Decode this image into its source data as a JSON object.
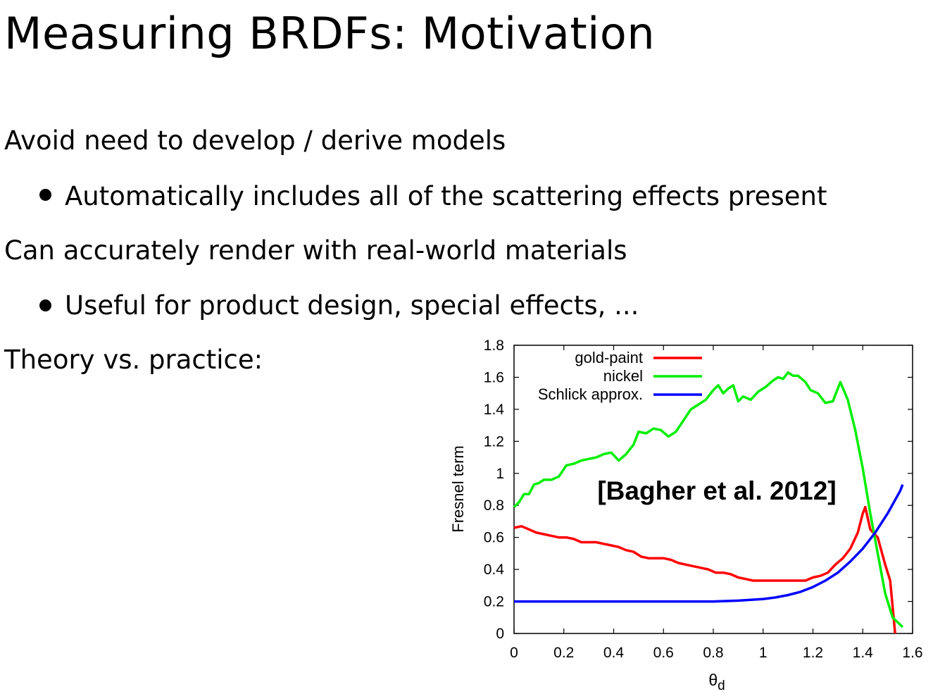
{
  "slide": {
    "title": "Measuring BRDFs: Motivation",
    "lines": [
      "Avoid need to develop / derive models",
      "Automatically includes all of the scattering effects present",
      "Can accurately render with real-world materials",
      "Useful for product design, special effects, ...",
      "Theory vs. practice:"
    ]
  },
  "chart_data": {
    "type": "line",
    "xlabel": "θd",
    "ylabel": "Fresnel term",
    "xlim": [
      0,
      1.6
    ],
    "ylim": [
      0,
      1.8
    ],
    "xticks": [
      "0",
      "0.2",
      "0.4",
      "0.6",
      "0.8",
      "1",
      "1.2",
      "1.4",
      "1.6"
    ],
    "yticks": [
      "0",
      "0.2",
      "0.4",
      "0.6",
      "0.8",
      "1",
      "1.2",
      "1.4",
      "1.6",
      "1.8"
    ],
    "annotation": "[Bagher et al. 2012]",
    "legend_position": "top-left",
    "series": [
      {
        "name": "gold-paint",
        "color": "#ff0000",
        "points": [
          [
            0,
            0.66
          ],
          [
            0.03,
            0.67
          ],
          [
            0.06,
            0.65
          ],
          [
            0.09,
            0.63
          ],
          [
            0.12,
            0.62
          ],
          [
            0.15,
            0.61
          ],
          [
            0.18,
            0.6
          ],
          [
            0.21,
            0.6
          ],
          [
            0.24,
            0.59
          ],
          [
            0.27,
            0.57
          ],
          [
            0.3,
            0.57
          ],
          [
            0.33,
            0.57
          ],
          [
            0.36,
            0.56
          ],
          [
            0.39,
            0.55
          ],
          [
            0.42,
            0.54
          ],
          [
            0.45,
            0.52
          ],
          [
            0.48,
            0.51
          ],
          [
            0.51,
            0.48
          ],
          [
            0.54,
            0.47
          ],
          [
            0.57,
            0.47
          ],
          [
            0.6,
            0.47
          ],
          [
            0.63,
            0.46
          ],
          [
            0.66,
            0.44
          ],
          [
            0.69,
            0.43
          ],
          [
            0.72,
            0.42
          ],
          [
            0.75,
            0.41
          ],
          [
            0.78,
            0.4
          ],
          [
            0.81,
            0.38
          ],
          [
            0.84,
            0.38
          ],
          [
            0.87,
            0.37
          ],
          [
            0.9,
            0.35
          ],
          [
            0.93,
            0.34
          ],
          [
            0.96,
            0.33
          ],
          [
            0.99,
            0.33
          ],
          [
            1.02,
            0.33
          ],
          [
            1.05,
            0.33
          ],
          [
            1.08,
            0.33
          ],
          [
            1.11,
            0.33
          ],
          [
            1.14,
            0.33
          ],
          [
            1.17,
            0.33
          ],
          [
            1.2,
            0.35
          ],
          [
            1.23,
            0.36
          ],
          [
            1.26,
            0.38
          ],
          [
            1.29,
            0.43
          ],
          [
            1.32,
            0.47
          ],
          [
            1.35,
            0.53
          ],
          [
            1.38,
            0.63
          ],
          [
            1.4,
            0.75
          ],
          [
            1.41,
            0.79
          ],
          [
            1.43,
            0.65
          ],
          [
            1.46,
            0.6
          ],
          [
            1.49,
            0.43
          ],
          [
            1.51,
            0.33
          ],
          [
            1.53,
            0.0
          ]
        ]
      },
      {
        "name": "nickel",
        "color": "#00ee00",
        "points": [
          [
            0,
            0.79
          ],
          [
            0.02,
            0.82
          ],
          [
            0.04,
            0.87
          ],
          [
            0.06,
            0.87
          ],
          [
            0.08,
            0.93
          ],
          [
            0.1,
            0.94
          ],
          [
            0.12,
            0.96
          ],
          [
            0.15,
            0.96
          ],
          [
            0.18,
            0.98
          ],
          [
            0.21,
            1.05
          ],
          [
            0.24,
            1.06
          ],
          [
            0.27,
            1.08
          ],
          [
            0.3,
            1.09
          ],
          [
            0.33,
            1.1
          ],
          [
            0.36,
            1.12
          ],
          [
            0.39,
            1.13
          ],
          [
            0.42,
            1.08
          ],
          [
            0.45,
            1.12
          ],
          [
            0.48,
            1.18
          ],
          [
            0.5,
            1.26
          ],
          [
            0.53,
            1.25
          ],
          [
            0.56,
            1.28
          ],
          [
            0.59,
            1.27
          ],
          [
            0.62,
            1.23
          ],
          [
            0.65,
            1.26
          ],
          [
            0.68,
            1.33
          ],
          [
            0.71,
            1.4
          ],
          [
            0.74,
            1.43
          ],
          [
            0.77,
            1.46
          ],
          [
            0.8,
            1.52
          ],
          [
            0.82,
            1.55
          ],
          [
            0.84,
            1.5
          ],
          [
            0.86,
            1.53
          ],
          [
            0.88,
            1.55
          ],
          [
            0.9,
            1.45
          ],
          [
            0.92,
            1.48
          ],
          [
            0.95,
            1.46
          ],
          [
            0.98,
            1.51
          ],
          [
            1.01,
            1.54
          ],
          [
            1.04,
            1.58
          ],
          [
            1.06,
            1.6
          ],
          [
            1.08,
            1.59
          ],
          [
            1.1,
            1.63
          ],
          [
            1.12,
            1.61
          ],
          [
            1.14,
            1.61
          ],
          [
            1.17,
            1.57
          ],
          [
            1.19,
            1.52
          ],
          [
            1.22,
            1.5
          ],
          [
            1.25,
            1.44
          ],
          [
            1.28,
            1.45
          ],
          [
            1.31,
            1.57
          ],
          [
            1.34,
            1.46
          ],
          [
            1.37,
            1.27
          ],
          [
            1.4,
            1.03
          ],
          [
            1.43,
            0.75
          ],
          [
            1.46,
            0.5
          ],
          [
            1.49,
            0.25
          ],
          [
            1.52,
            0.1
          ],
          [
            1.56,
            0.04
          ]
        ]
      },
      {
        "name": "Schlick approx.",
        "color": "#0000ff",
        "points": [
          [
            0,
            0.2
          ],
          [
            0.8,
            0.2
          ],
          [
            0.9,
            0.205
          ],
          [
            1.0,
            0.215
          ],
          [
            1.05,
            0.225
          ],
          [
            1.1,
            0.24
          ],
          [
            1.15,
            0.26
          ],
          [
            1.2,
            0.29
          ],
          [
            1.25,
            0.33
          ],
          [
            1.3,
            0.38
          ],
          [
            1.35,
            0.45
          ],
          [
            1.4,
            0.53
          ],
          [
            1.45,
            0.63
          ],
          [
            1.5,
            0.75
          ],
          [
            1.55,
            0.89
          ],
          [
            1.56,
            0.93
          ]
        ]
      }
    ]
  }
}
